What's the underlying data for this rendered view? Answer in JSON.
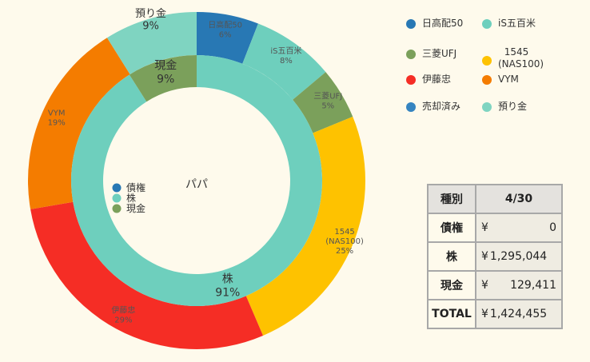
{
  "chart_data": {
    "type": "pie",
    "center_label": "パパ",
    "outer_ring": [
      {
        "label": "日高配50",
        "percent": 6,
        "color": "#2878b4"
      },
      {
        "label": "iS五百米",
        "percent": 8,
        "color": "#6ecfbd"
      },
      {
        "label": "三菱UFJ",
        "percent": 5,
        "color": "#7ba05b"
      },
      {
        "label": "1545 (NAS100)",
        "percent": 25,
        "color": "#fec200"
      },
      {
        "label": "伊藤忠",
        "percent": 29,
        "color": "#f52d25"
      },
      {
        "label": "VYM",
        "percent": 19,
        "color": "#f47c00"
      },
      {
        "label": "預り金",
        "percent": 9,
        "color": "#7fd4c1"
      }
    ],
    "inner_ring": [
      {
        "label": "債権",
        "percent": 0,
        "color": "#2878b4"
      },
      {
        "label": "株",
        "percent": 91,
        "color": "#6ecfbd"
      },
      {
        "label": "現金",
        "percent": 9,
        "color": "#7ba05b"
      }
    ],
    "legend": [
      {
        "label": "日高配50",
        "color": "#2878b4"
      },
      {
        "label": "iS五百米",
        "color": "#6ecfbd"
      },
      {
        "label": "三菱UFJ",
        "color": "#7ba05b"
      },
      {
        "label": "1545 (NAS100)",
        "color": "#fec200"
      },
      {
        "label": "伊藤忠",
        "color": "#f52d25"
      },
      {
        "label": "VYM",
        "color": "#f47c00"
      },
      {
        "label": "売却済み",
        "color": "#3584c0"
      },
      {
        "label": "預り金",
        "color": "#7fd4c1"
      }
    ],
    "inner_legend": [
      {
        "label": "債権",
        "color": "#2878b4"
      },
      {
        "label": "株",
        "color": "#6ecfbd"
      },
      {
        "label": "現金",
        "color": "#7ba05b"
      }
    ]
  },
  "table": {
    "header": [
      "種別",
      "4/30"
    ],
    "rows": [
      {
        "label": "債権",
        "yen": "¥",
        "amount": "0"
      },
      {
        "label": "株",
        "yen": "¥",
        "amount": "1,295,044"
      },
      {
        "label": "現金",
        "yen": "¥",
        "amount": "129,411"
      },
      {
        "label": "TOTAL",
        "yen": "¥",
        "amount": "1,424,455"
      }
    ]
  }
}
